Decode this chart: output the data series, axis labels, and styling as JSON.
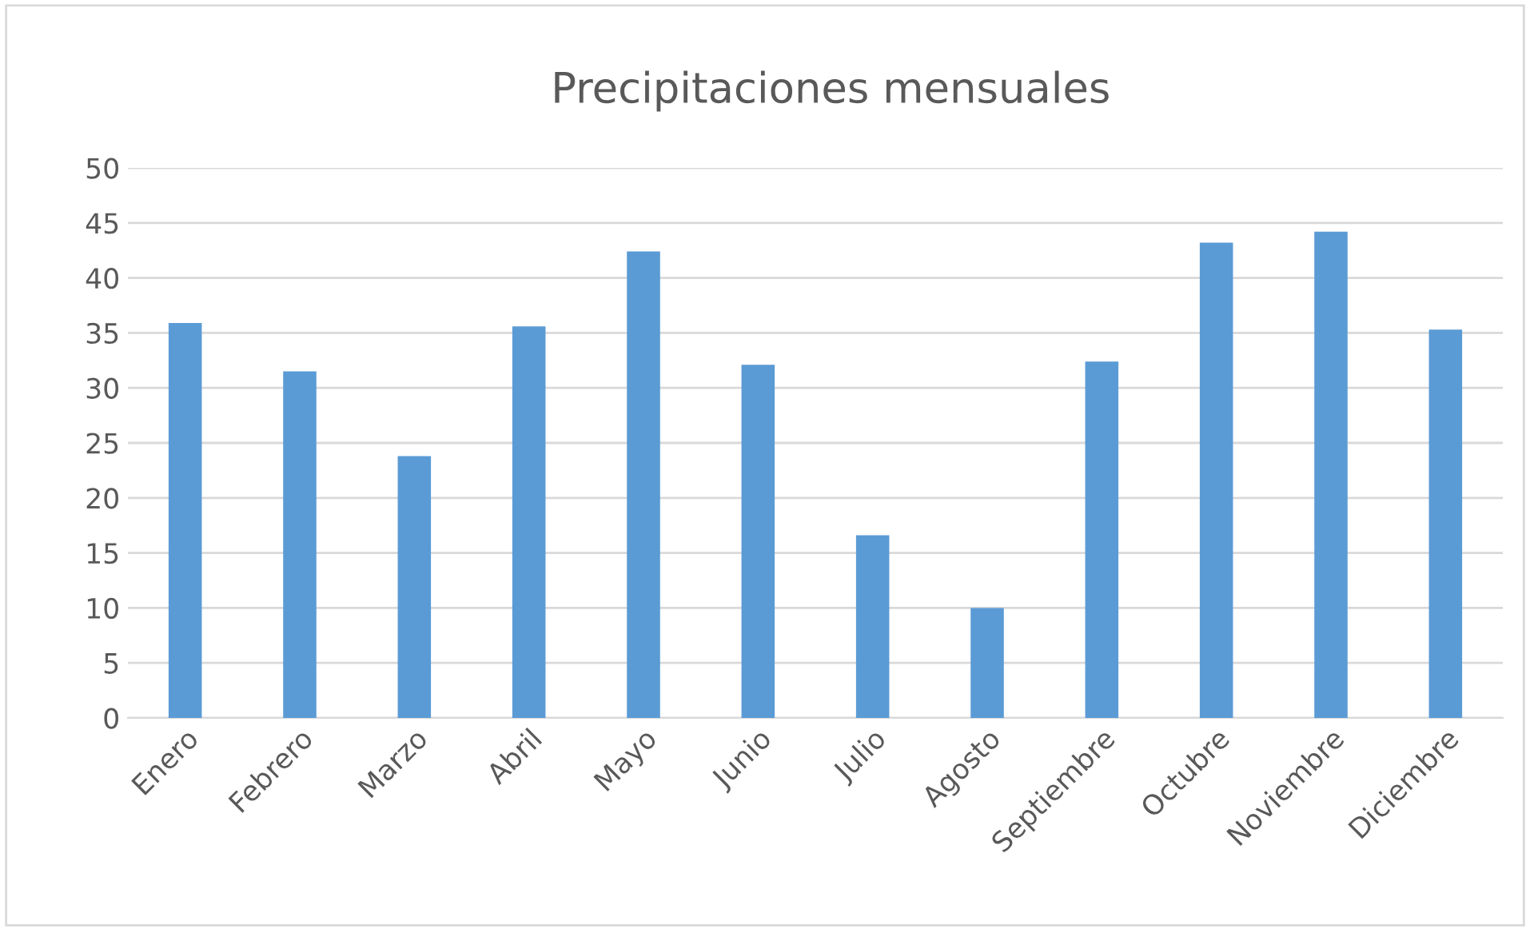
{
  "chart_data": {
    "type": "bar",
    "title": "Precipitaciones mensuales",
    "categories": [
      "Enero",
      "Febrero",
      "Marzo",
      "Abril",
      "Mayo",
      "Junio",
      "Julio",
      "Agosto",
      "Septiembre",
      "Octubre",
      "Noviembre",
      "Diciembre"
    ],
    "values": [
      35.9,
      31.5,
      23.8,
      35.6,
      42.4,
      32.1,
      16.6,
      10.0,
      32.4,
      43.2,
      44.2,
      35.3
    ],
    "color": "#5b9bd5",
    "ylim": [
      0,
      50
    ],
    "yticks": [
      0,
      5,
      10,
      15,
      20,
      25,
      30,
      35,
      40,
      45,
      50
    ],
    "grid": "y",
    "legend": false
  }
}
